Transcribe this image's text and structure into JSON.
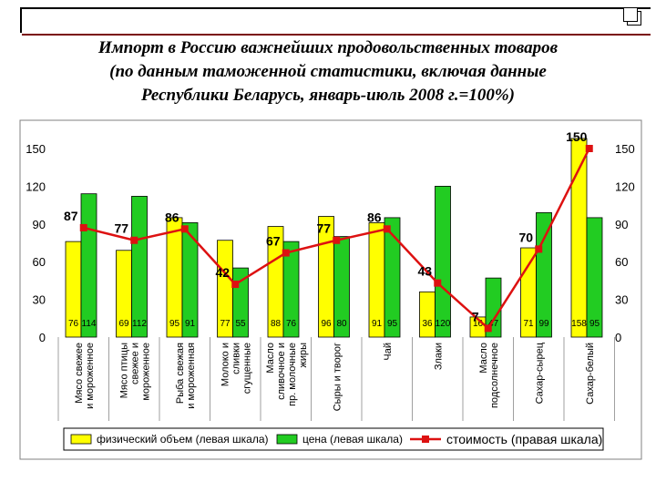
{
  "title_lines": [
    "Импорт в Россию важнейших продовольственных товаров",
    "(по данным таможенной статистики, включая данные",
    "Республики Беларусь, январь-июль 2008 г.=100%)"
  ],
  "colors": {
    "volume": "#ffff00",
    "price": "#22cc22",
    "cost": "#dd1111",
    "frame": "#808080"
  },
  "chart_data": {
    "type": "bar",
    "categories": [
      [
        "Мясо свежее",
        "и мороженное"
      ],
      [
        "Мясо птицы",
        "свежее и",
        "мороженное"
      ],
      [
        "Рыба свежая",
        "и мороженная"
      ],
      [
        "Молоко и",
        "сливки",
        "сгущенные"
      ],
      [
        "Масло",
        "сливочное и",
        "пр. молочные",
        "жиры"
      ],
      [
        "Сыры и творог"
      ],
      [
        "Чай"
      ],
      [
        "Злаки"
      ],
      [
        "Масло",
        "подсолнечное"
      ],
      [
        "Сахар-сырец"
      ],
      [
        "Сахар-белый"
      ]
    ],
    "series": [
      {
        "name": "физический объем (левая шкала)",
        "type": "bar",
        "axis": "left",
        "values": [
          76,
          69,
          95,
          77,
          88,
          96,
          91,
          36,
          16,
          71,
          158
        ],
        "labels": [
          "76",
          "69",
          "95",
          "77",
          "88",
          "96",
          "91",
          "36",
          "16",
          "71",
          "158"
        ]
      },
      {
        "name": "цена (левая шкала)",
        "type": "bar",
        "axis": "left",
        "values": [
          114,
          112,
          91,
          55,
          76,
          80,
          95,
          120,
          47,
          99,
          95
        ],
        "labels": [
          "114",
          "112",
          "91",
          "55",
          "76",
          "80",
          "95",
          "120",
          "47",
          "99",
          "95"
        ]
      },
      {
        "name": "стоимость (правая шкала)",
        "type": "line",
        "axis": "right",
        "values": [
          87,
          77,
          86,
          42,
          67,
          77,
          86,
          43,
          7,
          70,
          150
        ],
        "labels": [
          "87",
          "77",
          "86",
          "42",
          "67",
          "77",
          "86",
          "43",
          "7",
          "70",
          "150"
        ]
      }
    ],
    "y_left": {
      "min": 0,
      "max": 150,
      "ticks": [
        "0",
        "30",
        "60",
        "90",
        "120",
        "150"
      ]
    },
    "y_right": {
      "min": 0,
      "max": 150,
      "ticks": [
        "0",
        "30",
        "60",
        "90",
        "120",
        "150"
      ]
    },
    "grid": false,
    "legend_position": "bottom"
  }
}
